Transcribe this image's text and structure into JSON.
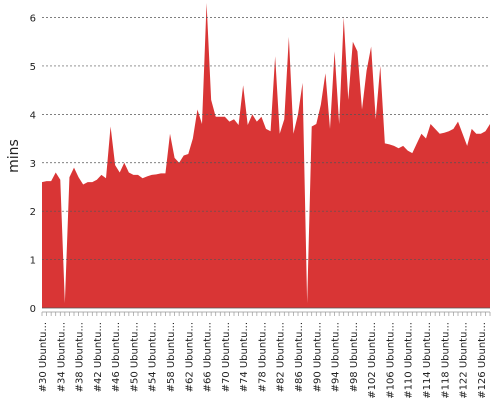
{
  "chart_data": {
    "type": "area",
    "y_label": "mins",
    "color": "#d93535",
    "grid": true,
    "ylim": [
      0,
      6.3
    ],
    "yticks": [
      0,
      1,
      2,
      3,
      4,
      5,
      6
    ],
    "categories": [
      "#30 Ubuntu...",
      null,
      null,
      null,
      "#34 Ubuntu...",
      null,
      null,
      null,
      "#38 Ubuntu...",
      null,
      null,
      null,
      "#42 Ubuntu...",
      null,
      null,
      null,
      "#46 Ubuntu...",
      null,
      null,
      null,
      "#50 Ubuntu...",
      null,
      null,
      null,
      "#54 Ubuntu...",
      null,
      null,
      null,
      "#58 Ubuntu...",
      null,
      null,
      null,
      "#62 Ubuntu...",
      null,
      null,
      null,
      "#66 Ubuntu...",
      null,
      null,
      null,
      "#70 Ubuntu...",
      null,
      null,
      null,
      "#74 Ubuntu...",
      null,
      null,
      null,
      "#78 Ubuntu...",
      null,
      null,
      null,
      "#82 Ubuntu...",
      null,
      null,
      null,
      "#86 Ubuntu...",
      null,
      null,
      null,
      "#90 Ubuntu...",
      null,
      null,
      null,
      "#94 Ubuntu...",
      null,
      null,
      null,
      "#98 Ubuntu...",
      null,
      null,
      null,
      "#102 Ubuntu...",
      null,
      null,
      null,
      "#106 Ubuntu...",
      null,
      null,
      null,
      "#110 Ubuntu...",
      null,
      null,
      null,
      "#114 Ubuntu...",
      null,
      null,
      null,
      "#118 Ubuntu...",
      null,
      null,
      null,
      "#122 Ubuntu...",
      null,
      null,
      null,
      "#126 Ubuntu...",
      null,
      null
    ],
    "values": [
      2.6,
      2.62,
      2.62,
      2.8,
      2.65,
      0.1,
      2.7,
      2.9,
      2.7,
      2.55,
      2.6,
      2.6,
      2.65,
      2.75,
      2.68,
      3.75,
      2.95,
      2.8,
      3.0,
      2.8,
      2.75,
      2.75,
      2.68,
      2.72,
      2.75,
      2.76,
      2.78,
      2.78,
      3.6,
      3.1,
      3.0,
      3.15,
      3.18,
      3.5,
      4.1,
      3.8,
      6.3,
      4.3,
      3.95,
      3.95,
      3.95,
      3.85,
      3.9,
      3.78,
      4.6,
      3.78,
      4.0,
      3.85,
      3.95,
      3.7,
      3.65,
      5.2,
      3.6,
      3.9,
      5.6,
      3.6,
      4.0,
      4.65,
      0.1,
      3.75,
      3.8,
      4.2,
      4.85,
      3.7,
      5.3,
      3.8,
      6.0,
      4.3,
      5.5,
      5.3,
      4.1,
      4.9,
      5.4,
      3.9,
      5.0,
      3.4,
      3.38,
      3.35,
      3.3,
      3.35,
      3.25,
      3.2,
      3.4,
      3.6,
      3.5,
      3.8,
      3.7,
      3.6,
      3.62,
      3.65,
      3.7,
      3.85,
      3.6,
      3.35,
      3.7,
      3.6,
      3.6,
      3.65,
      3.8
    ]
  }
}
